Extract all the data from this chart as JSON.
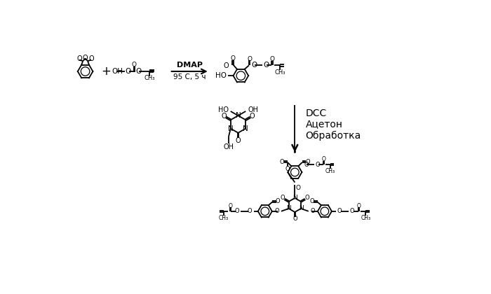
{
  "bg": "#ffffff",
  "lw": 1.3,
  "lw2": 0.9,
  "dmap_label": "DMAP",
  "cond_label": "95 C, 5 ч",
  "dcc_label": "DCC",
  "acetone_label": "Ацетон",
  "obrab_label": "Обработка"
}
